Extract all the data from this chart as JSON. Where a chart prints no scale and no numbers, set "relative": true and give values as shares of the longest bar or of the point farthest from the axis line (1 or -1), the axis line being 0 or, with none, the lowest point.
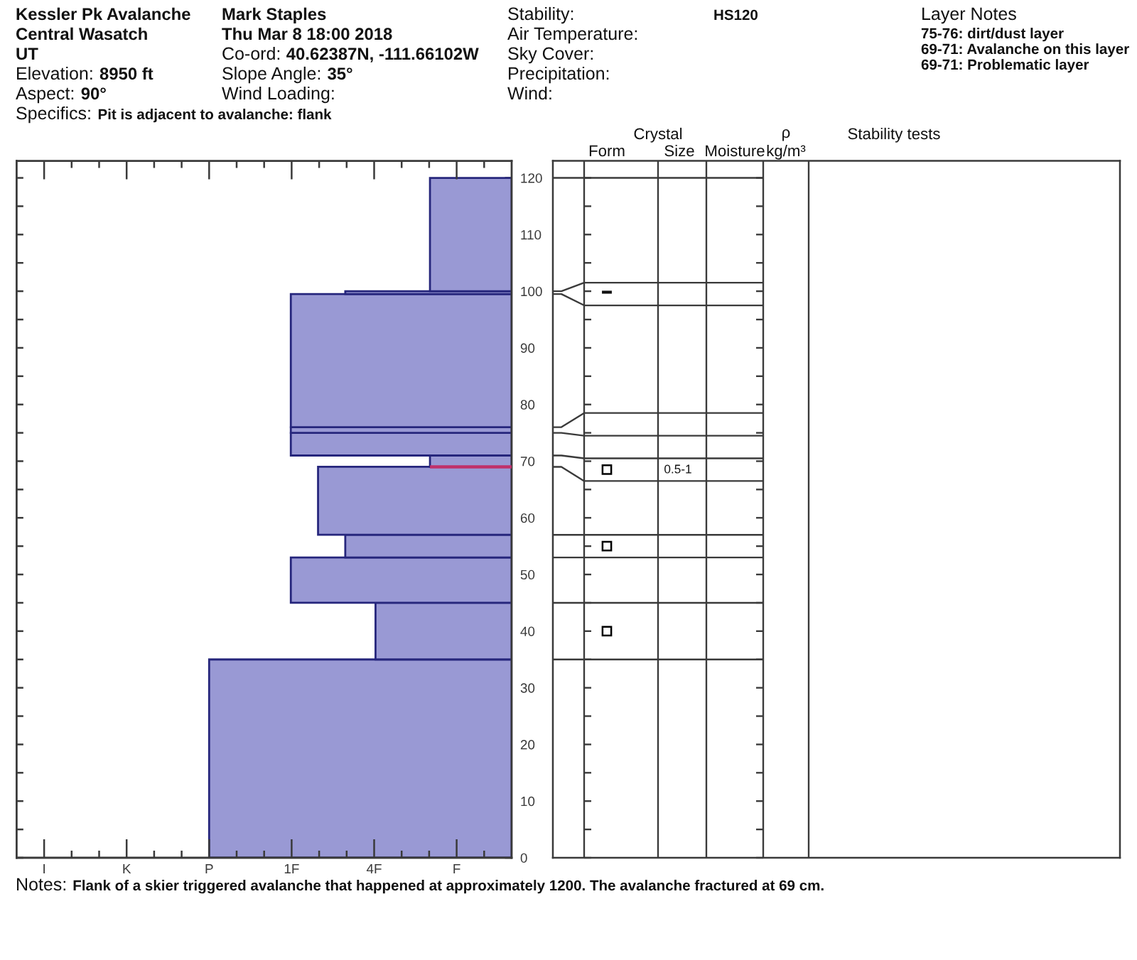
{
  "chart_data": [
    {
      "type": "bar",
      "orientation": "horizontal",
      "relative": true,
      "color": "#9999d4",
      "x": [
        17.5,
        40,
        49,
        55,
        63,
        70,
        73,
        75.5,
        87.75,
        99.75,
        110
      ],
      "values": [
        1,
        0.45,
        0.73,
        0.55,
        0.64,
        0.27,
        0.73,
        0.73,
        0.73,
        0.55,
        0.27
      ],
      "ylim": [
        0,
        123
      ],
      "yticks": [
        0,
        {
          "value": 5,
          "label": null
        },
        10,
        {
          "value": 15,
          "label": null
        },
        20,
        {
          "value": 25,
          "label": null
        },
        30,
        {
          "value": 35,
          "label": null
        },
        40,
        {
          "value": 45,
          "label": null
        },
        50,
        {
          "value": 55,
          "label": null
        },
        60,
        {
          "value": 65,
          "label": null
        },
        70,
        {
          "value": 75,
          "label": null
        },
        80,
        {
          "value": 85,
          "label": null
        },
        90,
        {
          "value": 95,
          "label": null
        },
        100,
        {
          "value": 105,
          "label": null
        },
        110,
        {
          "value": 115,
          "label": null
        },
        120
      ],
      "tick_labels": "y",
      "ref_lines": [
        {
          "axis": "y",
          "value": 69,
          "color": "#c0306a"
        }
      ],
      "annotations": [
        "Kessler Pk Avalanche",
        "Central Wasatch",
        "UT",
        "Elevation:",
        "8950 ft",
        "Aspect:",
        "90°",
        "Specifics:",
        "Pit is adjacent to avalanche: flank",
        "Mark Staples",
        "Thu Mar 8 18:00 2018",
        "Co-ord:",
        "40.62387N, -111.66102W",
        "Slope Angle:",
        "35°",
        "Wind Loading:",
        "Stability:",
        "Air Temperature:",
        "Sky Cover:",
        "Precipitation:",
        "Wind:",
        "HS120",
        "Layer Notes",
        "75-76: dirt/dust layer",
        "69-71: Avalanche on this layer",
        "69-71: Problematic layer",
        "Notes:",
        "Flank of a skier triggered avalanche that happened at approximately 1200. The avalanche fractured at 69 cm.",
        "I",
        "K",
        "P",
        "1F",
        "4F",
        "F"
      ]
    },
    {
      "type": "scatter",
      "categories": [
        null,
        "Form",
        "Size",
        "Moisture",
        "kg/m³",
        "Stability tests"
      ],
      "series": [
        {
          "x": [
            "Form",
            "Form",
            "Form"
          ],
          "values": [
            68.5,
            55,
            40
          ],
          "color": "#000000"
        }
      ],
      "marker": "square",
      "ylim": [
        0,
        123
      ],
      "yticks": [
        0,
        {
          "value": 5,
          "label": null
        },
        10,
        {
          "value": 15,
          "label": null
        },
        20,
        {
          "value": 25,
          "label": null
        },
        30,
        {
          "value": 35,
          "label": null
        },
        40,
        {
          "value": 45,
          "label": null
        },
        50,
        {
          "value": 55,
          "label": null
        },
        60,
        {
          "value": 65,
          "label": null
        },
        70,
        {
          "value": 75,
          "label": null
        },
        80,
        {
          "value": 85,
          "label": null
        },
        90,
        {
          "value": 95,
          "label": null
        },
        100,
        {
          "value": 105,
          "label": null
        },
        110,
        {
          "value": 115,
          "label": null
        },
        120
      ],
      "tick_labels": false,
      "ref_lines": [
        {
          "axis": "y",
          "value": 35
        },
        {
          "axis": "y",
          "value": 45
        },
        {
          "axis": "y",
          "value": 53
        },
        {
          "axis": "y",
          "value": 57
        },
        {
          "axis": "y",
          "value": 66.5
        },
        {
          "axis": "y",
          "value": 70.5
        },
        {
          "axis": "y",
          "value": 74.5
        },
        {
          "axis": "y",
          "value": 78.5
        },
        {
          "axis": "y",
          "value": 97.5
        },
        {
          "axis": "y",
          "value": 101.5
        },
        {
          "axis": "y",
          "value": 120
        }
      ],
      "annotations": [
        "Crystal",
        "ρ",
        "▬",
        "0.5-1"
      ]
    }
  ]
}
